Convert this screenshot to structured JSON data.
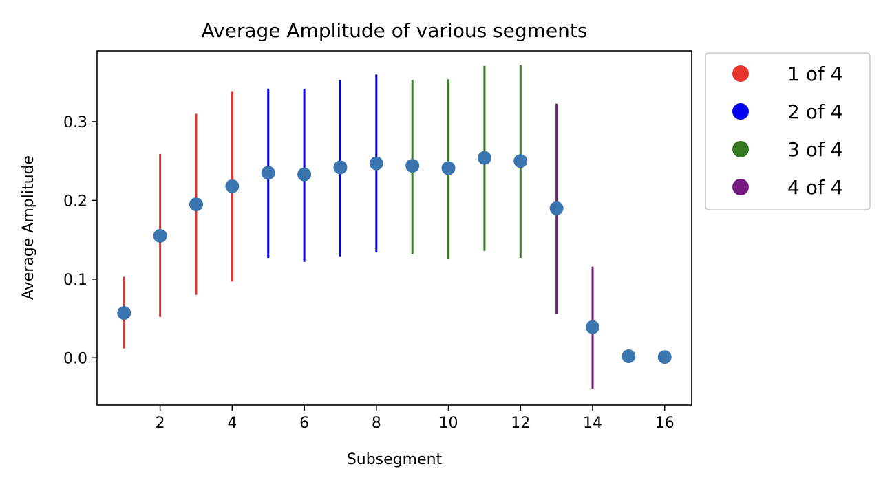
{
  "chart_data": {
    "type": "scatter",
    "title": "Average Amplitude of various segments",
    "xlabel": "Subsegment",
    "ylabel": "Average Amplitude",
    "xlim": [
      0.25,
      16.75
    ],
    "ylim": [
      -0.06,
      0.39
    ],
    "xticks": [
      2,
      4,
      6,
      8,
      10,
      12,
      14,
      16
    ],
    "yticks": [
      0.0,
      0.1,
      0.2,
      0.3
    ],
    "ytick_labels": [
      "0.0",
      "0.1",
      "0.2",
      "0.3"
    ],
    "grid": false,
    "legend_position": "outside-top-right",
    "marker_color": "#3b75af",
    "series": [
      {
        "name": "1 of 4",
        "color": "#e8352b",
        "x": [
          1,
          2,
          3,
          4
        ],
        "y": [
          0.057,
          0.155,
          0.195,
          0.218
        ],
        "err_low": [
          0.012,
          0.052,
          0.08,
          0.097
        ],
        "err_high": [
          0.103,
          0.259,
          0.31,
          0.338
        ]
      },
      {
        "name": "2 of 4",
        "color": "#0000ee",
        "x": [
          5,
          6,
          7,
          8
        ],
        "y": [
          0.235,
          0.233,
          0.242,
          0.247
        ],
        "err_low": [
          0.127,
          0.122,
          0.129,
          0.134
        ],
        "err_high": [
          0.342,
          0.342,
          0.353,
          0.36
        ]
      },
      {
        "name": "3 of 4",
        "color": "#357a23",
        "x": [
          9,
          10,
          11,
          12
        ],
        "y": [
          0.244,
          0.241,
          0.254,
          0.25
        ],
        "err_low": [
          0.132,
          0.126,
          0.136,
          0.127
        ],
        "err_high": [
          0.353,
          0.354,
          0.371,
          0.372
        ]
      },
      {
        "name": "4 of 4",
        "color": "#771a80",
        "x": [
          13,
          14
        ],
        "y": [
          0.19,
          0.039
        ],
        "err_low": [
          0.056,
          -0.039
        ],
        "err_high": [
          0.323,
          0.116
        ]
      }
    ],
    "extra_points": {
      "x": [
        15,
        16
      ],
      "y": [
        0.002,
        0.001
      ]
    }
  }
}
